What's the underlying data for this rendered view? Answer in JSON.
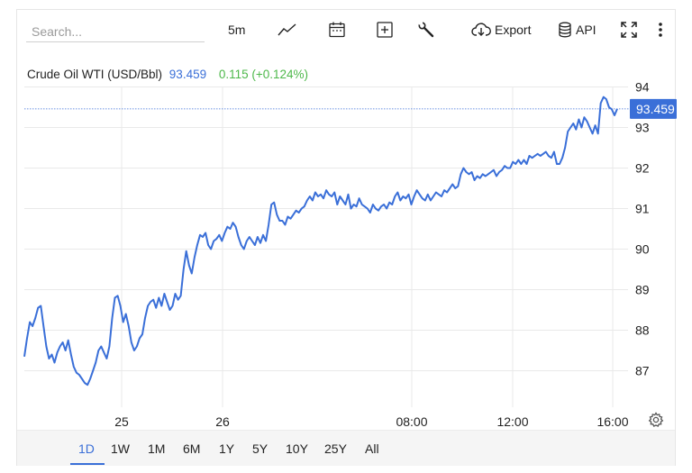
{
  "toolbar": {
    "search_placeholder": "Search...",
    "interval": "5m",
    "export_label": "Export",
    "api_label": "API"
  },
  "header": {
    "instrument": "Crude Oil WTI (USD/Bbl)",
    "price": "93.459",
    "change": "0.115 (+0.124%)"
  },
  "price_label": "93.459",
  "ranges": [
    "1D",
    "1W",
    "1M",
    "6M",
    "1Y",
    "5Y",
    "10Y",
    "25Y",
    "All"
  ],
  "active_range": "1D",
  "colors": {
    "line": "#3a6fd8",
    "positive": "#4db84a",
    "grid": "#e9e9e9"
  },
  "icons": [
    "line-chart-icon",
    "calendar-icon",
    "plus-box-icon",
    "wrench-icon",
    "cloud-download-icon",
    "database-icon",
    "fullscreen-icon",
    "more-vertical-icon",
    "settings-gear-icon"
  ],
  "chart_data": {
    "type": "line",
    "series": [
      {
        "values": [
          87.35,
          87.8,
          88.2,
          88.1,
          88.3,
          88.55,
          88.6,
          88.1,
          87.6,
          87.3,
          87.4,
          87.2,
          87.45,
          87.6,
          87.7,
          87.5,
          87.75,
          87.4,
          87.1,
          86.95,
          86.9,
          86.8,
          86.7,
          86.65,
          86.8,
          87.0,
          87.2,
          87.5,
          87.6,
          87.45,
          87.3,
          87.6,
          88.3,
          88.8,
          88.85,
          88.6,
          88.2,
          88.4,
          88.1,
          87.7,
          87.5,
          87.6,
          87.8,
          87.9,
          88.3,
          88.6,
          88.7,
          88.75,
          88.55,
          88.8,
          88.6,
          88.9,
          88.7,
          88.5,
          88.6,
          88.9,
          88.75,
          88.85,
          89.5,
          89.95,
          89.6,
          89.4,
          89.8,
          90.1,
          90.35,
          90.3,
          90.4,
          90.1,
          90.0,
          90.2,
          90.25,
          90.35,
          90.2,
          90.4,
          90.55,
          90.5,
          90.65,
          90.55,
          90.3,
          90.1,
          90.0,
          90.2,
          90.3,
          90.2,
          90.1,
          90.3,
          90.15,
          90.35,
          90.2,
          90.6,
          91.1,
          91.15,
          90.85,
          90.7,
          90.7,
          90.6,
          90.8,
          90.75,
          90.85,
          90.95,
          90.9,
          91.0,
          91.05,
          91.2,
          91.3,
          91.2,
          91.4,
          91.3,
          91.35,
          91.25,
          91.45,
          91.35,
          91.3,
          91.4,
          91.1,
          91.3,
          91.2,
          91.1,
          91.35,
          91.0,
          91.1,
          91.05,
          91.25,
          91.1,
          91.05,
          91.0,
          90.9,
          91.1,
          91.0,
          90.95,
          91.05,
          91.1,
          91.0,
          91.15,
          91.1,
          91.3,
          91.4,
          91.2,
          91.3,
          91.25,
          91.35,
          91.1,
          91.3,
          91.45,
          91.35,
          91.25,
          91.2,
          91.35,
          91.2,
          91.3,
          91.4,
          91.35,
          91.3,
          91.45,
          91.4,
          91.5,
          91.6,
          91.5,
          91.55,
          91.85,
          92.0,
          91.9,
          91.85,
          91.9,
          91.7,
          91.8,
          91.75,
          91.85,
          91.8,
          91.85,
          91.9,
          91.95,
          91.8,
          91.9,
          91.95,
          92.05,
          92.0,
          92.0,
          92.15,
          92.1,
          92.2,
          92.1,
          92.2,
          92.1,
          92.3,
          92.25,
          92.3,
          92.35,
          92.3,
          92.35,
          92.4,
          92.3,
          92.25,
          92.4,
          92.1,
          92.1,
          92.25,
          92.5,
          92.9,
          93.0,
          93.1,
          92.95,
          93.2,
          93.0,
          93.25,
          93.15,
          93.0,
          92.85,
          93.05,
          92.85,
          93.6,
          93.75,
          93.7,
          93.5,
          93.45,
          93.3,
          93.46
        ],
        "last": 93.459
      }
    ],
    "x_ticks": [
      "25",
      "26",
      "08:00",
      "12:00",
      "16:00"
    ],
    "y_ticks": [
      87,
      88,
      89,
      90,
      91,
      92,
      93,
      94
    ],
    "ylim": [
      86.1,
      94.3
    ],
    "grid": true,
    "last_price_marker": true
  }
}
